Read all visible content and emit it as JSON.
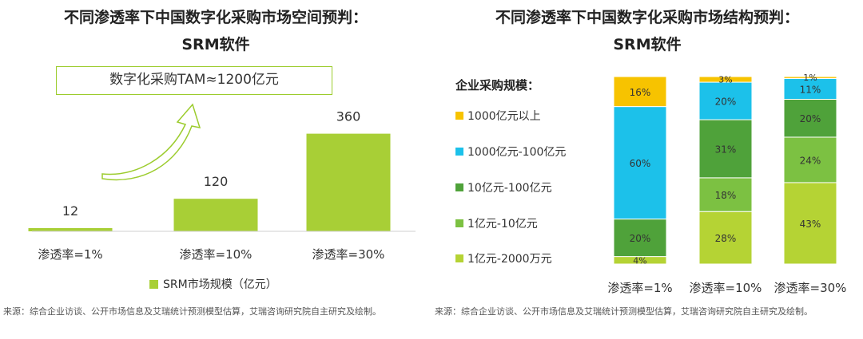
{
  "left": {
    "title_line1": "不同渗透率下中国数字化采购市场空间预判：",
    "title_line2": "SRM软件",
    "tam_label": "数字化采购TAM≈1200亿元",
    "legend_label": "SRM市场规模（亿元）",
    "source": "来源：综合企业访谈、公开市场信息及艾瑞统计预测模型估算，艾瑞咨询研究院自主研究及绘制。"
  },
  "right": {
    "title_line1": "不同渗透率下中国数字化采购市场结构预判：",
    "title_line2": "SRM软件",
    "legend_title": "企业采购规模：",
    "source": "来源：综合企业访谈、公开市场信息及艾瑞统计预测模型估算，艾瑞咨询研究院自主研究及绘制。"
  },
  "colors": {
    "lime": "#a8cf36",
    "yellow": "#f7c300",
    "cyan": "#1cc1ea",
    "dark_green": "#4fa23a",
    "mid_green": "#7cc142",
    "light_green": "#b5d334"
  },
  "chart_data": [
    {
      "type": "bar",
      "categories": [
        "渗透率=1%",
        "渗透率=10%",
        "渗透率=30%"
      ],
      "series": [
        {
          "name": "SRM市场规模（亿元）",
          "values": [
            12,
            120,
            360
          ]
        }
      ],
      "ylim": [
        0,
        400
      ]
    },
    {
      "type": "bar",
      "stacked": true,
      "categories": [
        "渗透率=1%",
        "渗透率=10%",
        "渗透率=30%"
      ],
      "series": [
        {
          "name": "1亿元-2000万元",
          "color": "#b5d334",
          "values": [
            4,
            28,
            43
          ],
          "labels": [
            "4%",
            "28%",
            "43%"
          ]
        },
        {
          "name": "1亿元-10亿元",
          "color": "#7cc142",
          "values": [
            0,
            18,
            24
          ],
          "labels": [
            "",
            "18%",
            "24%"
          ]
        },
        {
          "name": "10亿元-100亿元",
          "color": "#4fa23a",
          "values": [
            20,
            31,
            20
          ],
          "labels": [
            "20%",
            "31%",
            "20%"
          ]
        },
        {
          "name": "1000亿元-100亿元",
          "color": "#1cc1ea",
          "values": [
            60,
            20,
            11
          ],
          "labels": [
            "60%",
            "20%",
            "11%"
          ]
        },
        {
          "name": "1000亿元以上",
          "color": "#f7c300",
          "values": [
            16,
            3,
            1
          ],
          "labels": [
            "16%",
            "3%",
            "1%"
          ]
        }
      ],
      "legend_order": [
        "1000亿元以上",
        "1000亿元-100亿元",
        "10亿元-100亿元",
        "1亿元-10亿元",
        "1亿元-2000万元"
      ],
      "ylim": [
        0,
        100
      ]
    }
  ]
}
